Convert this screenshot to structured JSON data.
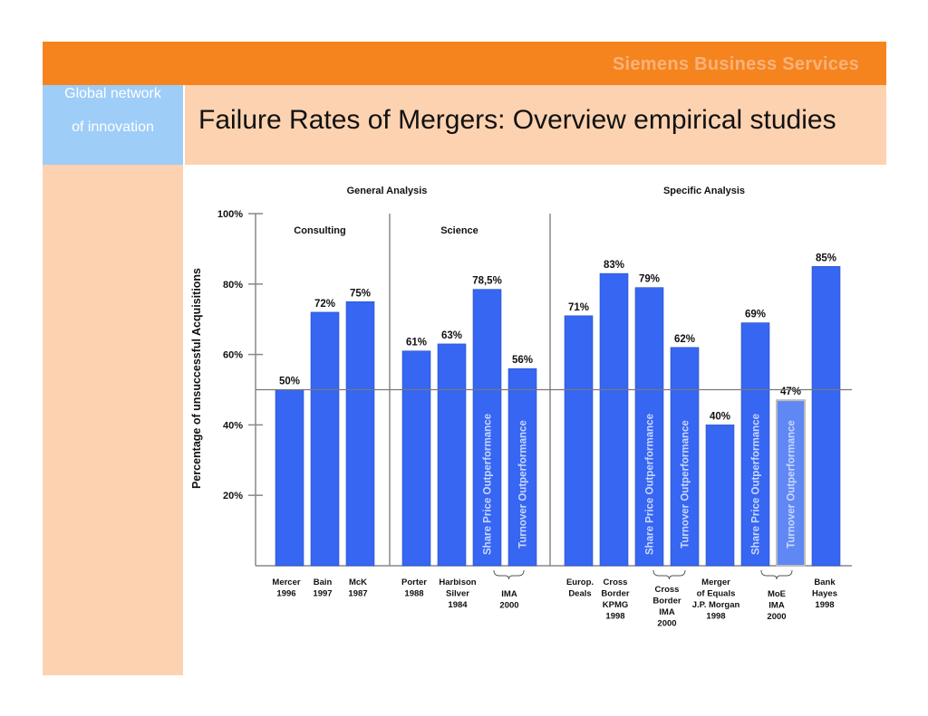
{
  "header": {
    "brand": "Siemens Business Services",
    "tagline_line1": "Global network",
    "tagline_line2": "of innovation",
    "title": "Failure Rates of Mergers: Overview empirical studies"
  },
  "colors": {
    "orange": "#f5841f",
    "peach": "#fdd2b0",
    "blue_panel": "#9ecdf7",
    "bar": "#3666f2"
  },
  "chart_data": {
    "type": "bar",
    "ylabel": "Percentage of unsuccessful Acquisitions",
    "yticks": [
      "20%",
      "40%",
      "60%",
      "80%",
      "100%"
    ],
    "ylim": [
      0,
      100
    ],
    "reference_line": 50,
    "group_headers": [
      "General Analysis",
      "Specific Analysis"
    ],
    "subgroup_headers": [
      "Consulting",
      "Science"
    ],
    "bars": [
      {
        "value": 50,
        "label": "50%",
        "inner": ""
      },
      {
        "value": 72,
        "label": "72%",
        "inner": ""
      },
      {
        "value": 75,
        "label": "75%",
        "inner": ""
      },
      {
        "value": 61,
        "label": "61%",
        "inner": ""
      },
      {
        "value": 63,
        "label": "63%",
        "inner": ""
      },
      {
        "value": 78.5,
        "label": "78,5%",
        "inner": "Share Price Outperformance"
      },
      {
        "value": 56,
        "label": "56%",
        "inner": "Turnover Outperformance"
      },
      {
        "value": 71,
        "label": "71%",
        "inner": ""
      },
      {
        "value": 83,
        "label": "83%",
        "inner": ""
      },
      {
        "value": 79,
        "label": "79%",
        "inner": "Share Price Outperformance"
      },
      {
        "value": 62,
        "label": "62%",
        "inner": "Turnover Outperformance"
      },
      {
        "value": 40,
        "label": "40%",
        "inner": ""
      },
      {
        "value": 69,
        "label": "69%",
        "inner": "Share Price Outperformance"
      },
      {
        "value": 47,
        "label": "47%",
        "inner": "Turnover Outperformance"
      },
      {
        "value": 85,
        "label": "85%",
        "inner": ""
      }
    ],
    "categories": [
      [
        "Mercer",
        "1996"
      ],
      [
        "Bain",
        "1997"
      ],
      [
        "McK",
        "1987"
      ],
      [
        "Porter",
        "1988"
      ],
      [
        "Harbison",
        "Silver",
        "1984"
      ],
      [
        "IMA",
        "2000"
      ],
      [
        "Europ.",
        "Deals"
      ],
      [
        "Cross",
        "Border",
        "KPMG",
        "1998"
      ],
      [
        "Cross",
        "Border",
        "IMA",
        "2000"
      ],
      [
        "Merger",
        "of Equals",
        "J.P. Morgan",
        "1998"
      ],
      [
        "MoE",
        "IMA",
        "2000"
      ],
      [
        "Bank",
        "Hayes",
        "1998"
      ]
    ]
  }
}
